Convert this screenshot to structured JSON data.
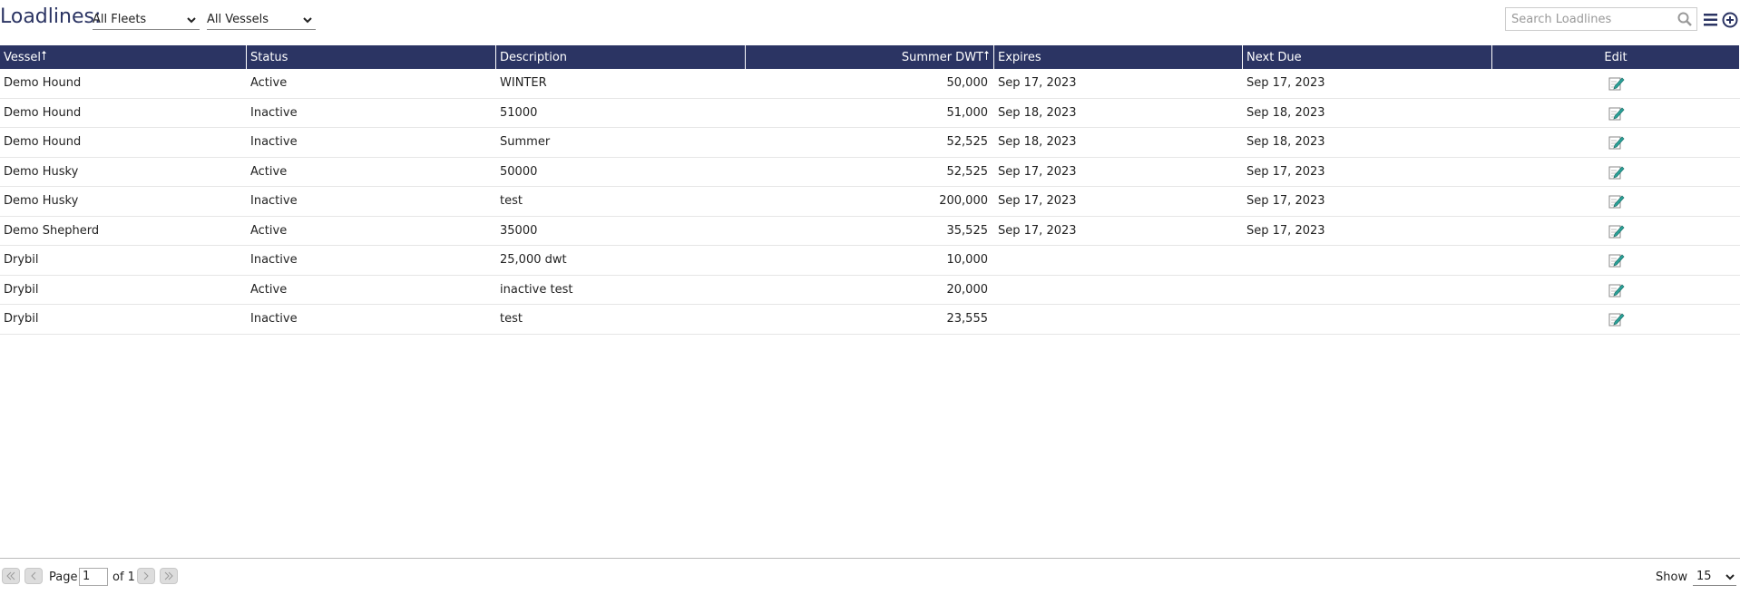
{
  "header": {
    "title": "Loadlines:",
    "fleet_filter": "All Fleets",
    "vessel_filter": "All Vessels",
    "search_placeholder": "Search Loadlines"
  },
  "table": {
    "columns": [
      "Vessel",
      "Status",
      "Description",
      "Summer DWT",
      "Expires",
      "Next Due",
      "Edit"
    ],
    "rows": [
      {
        "vessel": "Demo Hound",
        "status": "Active",
        "description": "WINTER",
        "dwt": "50,000",
        "expires": "Sep 17, 2023",
        "next_due": "Sep 17, 2023"
      },
      {
        "vessel": "Demo Hound",
        "status": "Inactive",
        "description": "51000",
        "dwt": "51,000",
        "expires": "Sep 18, 2023",
        "next_due": "Sep 18, 2023"
      },
      {
        "vessel": "Demo Hound",
        "status": "Inactive",
        "description": "Summer",
        "dwt": "52,525",
        "expires": "Sep 18, 2023",
        "next_due": "Sep 18, 2023"
      },
      {
        "vessel": "Demo Husky",
        "status": "Active",
        "description": "50000",
        "dwt": "52,525",
        "expires": "Sep 17, 2023",
        "next_due": "Sep 17, 2023"
      },
      {
        "vessel": "Demo Husky",
        "status": "Inactive",
        "description": "test",
        "dwt": "200,000",
        "expires": "Sep 17, 2023",
        "next_due": "Sep 17, 2023"
      },
      {
        "vessel": "Demo Shepherd",
        "status": "Active",
        "description": "35000",
        "dwt": "35,525",
        "expires": "Sep 17, 2023",
        "next_due": "Sep 17, 2023"
      },
      {
        "vessel": "Drybil",
        "status": "Inactive",
        "description": "25,000 dwt",
        "dwt": "10,000"
      },
      {
        "vessel": "Drybil",
        "status": "Active",
        "description": "inactive test",
        "dwt": "20,000"
      },
      {
        "vessel": "Drybil",
        "status": "Inactive",
        "description": "test",
        "dwt": "23,555"
      }
    ]
  },
  "pager": {
    "page_label": "Page",
    "page": "1",
    "of_label": "of 1",
    "show_label": "Show",
    "show_value": "15"
  }
}
